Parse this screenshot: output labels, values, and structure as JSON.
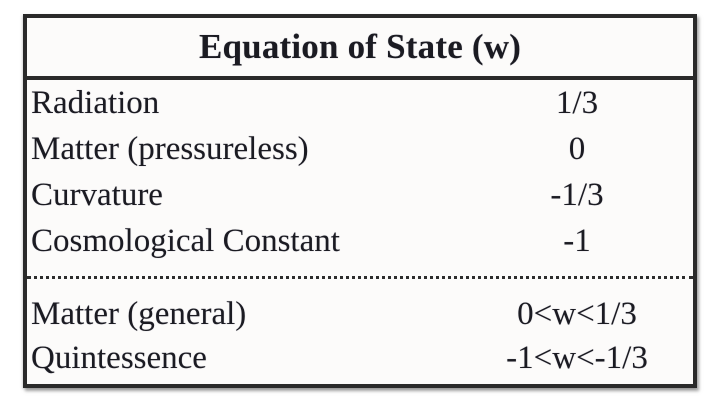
{
  "table": {
    "title": "Equation of State (w)",
    "groups": [
      {
        "rows": [
          {
            "label": "Radiation",
            "value": "1/3"
          },
          {
            "label": "Matter (pressureless)",
            "value": "0"
          },
          {
            "label": "Curvature",
            "value": "-1/3"
          },
          {
            "label": "Cosmological Constant",
            "value": "-1"
          }
        ]
      },
      {
        "rows": [
          {
            "label": "Matter (general)",
            "value": "0<w<1/3"
          },
          {
            "label": "Quintessence",
            "value": "-1<w<-1/3"
          }
        ]
      }
    ]
  },
  "colors": {
    "text": "#1b1b22",
    "border": "#2a2a2a",
    "table_background": "#fcfbfa",
    "page_background": "#ffffff"
  }
}
